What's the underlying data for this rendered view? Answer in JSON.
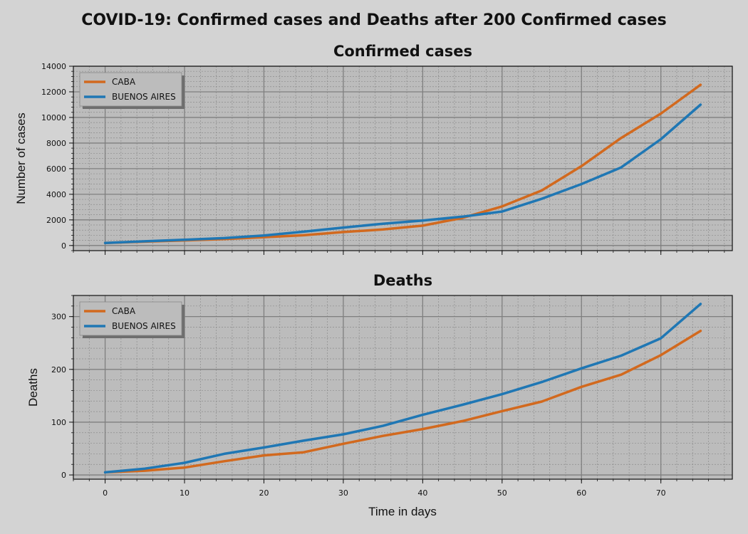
{
  "suptitle": "COVID-19: Confirmed cases and Deaths after 200 Confirmed cases",
  "xlabel": "Time in days",
  "colors": {
    "background": "#d3d3d3",
    "plot_bg": "#bcbcbc",
    "major_grid": "#7f7f7f",
    "minor_grid": "#8c8c8c",
    "CABA": "#d2691e",
    "BUENOS AIRES": "#1f77b4"
  },
  "chart_data": [
    {
      "type": "line",
      "title": "Confirmed cases",
      "xlabel": "",
      "ylabel": "Number of cases",
      "xlim": [
        -4,
        79
      ],
      "ylim": [
        -400,
        14000
      ],
      "xticks": [
        0,
        10,
        20,
        30,
        40,
        50,
        60,
        70
      ],
      "yticks": [
        0,
        2000,
        4000,
        6000,
        8000,
        10000,
        12000,
        14000
      ],
      "grid": true,
      "legend": "upper left",
      "x": [
        0,
        5,
        10,
        15,
        20,
        25,
        30,
        35,
        40,
        45,
        50,
        55,
        60,
        65,
        70,
        75
      ],
      "series": [
        {
          "name": "CABA",
          "values": [
            200,
            300,
            400,
            500,
            650,
            800,
            1050,
            1250,
            1550,
            2150,
            3050,
            4300,
            6200,
            8400,
            10300,
            12550
          ]
        },
        {
          "name": "BUENOS AIRES",
          "values": [
            200,
            330,
            450,
            580,
            780,
            1080,
            1400,
            1700,
            1950,
            2250,
            2650,
            3650,
            4800,
            6100,
            8300,
            11000
          ]
        }
      ]
    },
    {
      "type": "line",
      "title": "Deaths",
      "xlabel": "Time in days",
      "ylabel": "Deaths",
      "xlim": [
        -4,
        79
      ],
      "ylim": [
        -8,
        340
      ],
      "xticks": [
        0,
        10,
        20,
        30,
        40,
        50,
        60,
        70
      ],
      "yticks": [
        0,
        100,
        200,
        300
      ],
      "grid": true,
      "legend": "upper left",
      "x": [
        0,
        5,
        10,
        15,
        20,
        25,
        30,
        35,
        40,
        45,
        50,
        55,
        60,
        65,
        70,
        75
      ],
      "series": [
        {
          "name": "CABA",
          "values": [
            5,
            8,
            14,
            26,
            37,
            43,
            59,
            74,
            87,
            102,
            121,
            139,
            167,
            190,
            227,
            273
          ]
        },
        {
          "name": "BUENOS AIRES",
          "values": [
            5,
            12,
            23,
            40,
            52,
            65,
            77,
            93,
            114,
            133,
            153,
            176,
            202,
            226,
            259,
            324
          ]
        }
      ]
    }
  ]
}
